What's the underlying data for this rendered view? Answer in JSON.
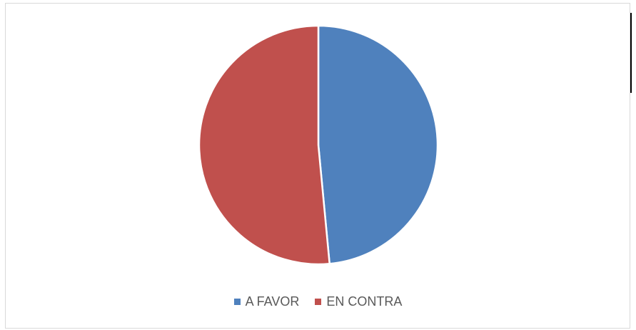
{
  "chart_data": {
    "type": "pie",
    "title": "",
    "categories": [
      "A FAVOR",
      "EN CONTRA"
    ],
    "values": [
      48.5,
      51.5
    ],
    "colors": [
      "#4f81bd",
      "#c0504d"
    ],
    "start_angle_deg": 0,
    "direction": "clockwise",
    "legend_position": "bottom"
  }
}
